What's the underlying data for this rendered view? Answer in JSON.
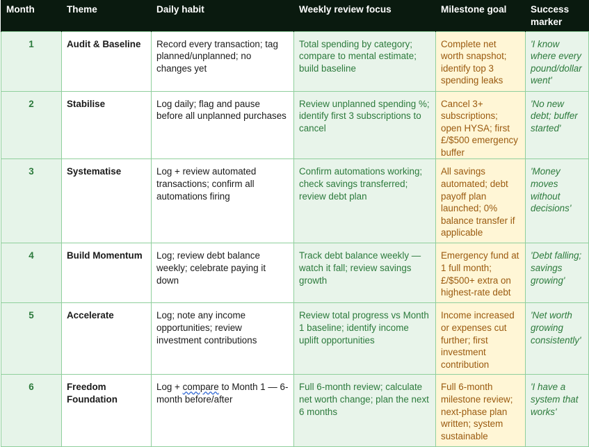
{
  "headers": {
    "month": "Month",
    "theme": "Theme",
    "daily": "Daily habit",
    "weekly": "Weekly review focus",
    "goal": "Milestone goal",
    "marker": "Success marker"
  },
  "rows": [
    {
      "month": "1",
      "theme": "Audit & Baseline",
      "daily": "Record every transaction; tag planned/unplanned; no changes yet",
      "weekly": "Total spending by category; compare to mental estimate; build baseline",
      "goal": "Complete net worth snapshot; identify top 3 spending leaks",
      "marker": "'I know where every pound/dollar went'"
    },
    {
      "month": "2",
      "theme": "Stabilise",
      "daily": "Log daily; flag and pause before all unplanned purchases",
      "weekly": "Review unplanned spending %; identify first 3 subscriptions to cancel",
      "goal": "Cancel 3+ subscriptions; open HYSA; first £/$500 emergency buffer",
      "marker": "'No new debt; buffer started'"
    },
    {
      "month": "3",
      "theme": "Systematise",
      "daily": "Log + review automated transactions; confirm all automations firing",
      "weekly": "Confirm automations working; check savings transferred; review debt plan",
      "goal": "All savings automated; debt payoff plan launched; 0% balance transfer if applicable",
      "marker": "'Money moves without decisions'"
    },
    {
      "month": "4",
      "theme": "Build Momentum",
      "daily": "Log; review debt balance weekly; celebrate paying it down",
      "weekly": "Track debt balance weekly — watch it fall; review savings growth",
      "goal": "Emergency fund at 1 full month; £/$500+ extra on highest-rate debt",
      "marker": "'Debt falling; savings growing'"
    },
    {
      "month": "5",
      "theme": "Accelerate",
      "daily": "Log; note any income opportunities; review investment contributions",
      "weekly": "Review total progress vs Month 1 baseline; identify income uplift opportunities",
      "goal": "Income increased or expenses cut further; first investment contribution",
      "marker": "'Net worth growing consistently'"
    },
    {
      "month": "6",
      "theme": "Freedom Foundation",
      "daily_pre": "Log + ",
      "daily_underlined": "compare",
      "daily_post": " to Month 1 — 6-month before/after",
      "weekly": "Full 6-month review; calculate net worth change; plan the next 6 months",
      "goal": "Full 6-month milestone review; next-phase plan written; system sustainable",
      "marker": "'I have a system that works'"
    }
  ]
}
